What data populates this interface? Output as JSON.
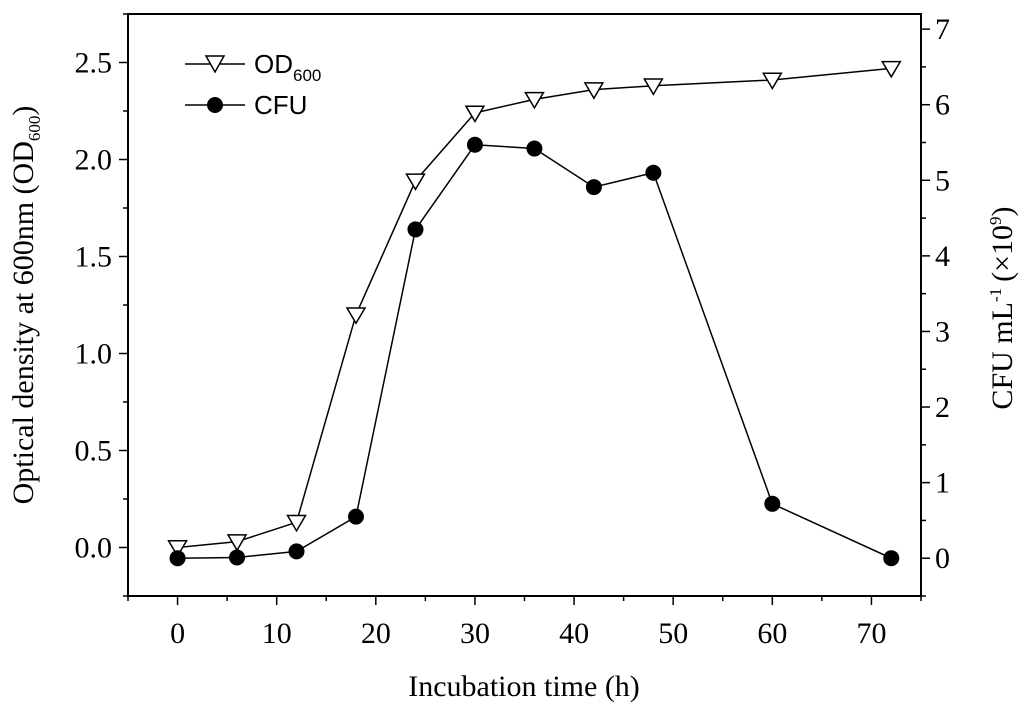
{
  "chart_data": {
    "type": "line",
    "xlabel": "Incubation time (h)",
    "ylabel_left": {
      "main": "Optical density at 600nm (OD",
      "sub": "600",
      "close": ")"
    },
    "ylabel_right": {
      "main": "CFU mL",
      "sup": "-1",
      "mid": "(×10",
      "sup2": "9",
      "close": ")"
    },
    "xlim": [
      -5,
      75
    ],
    "ylim_left": [
      -0.25,
      2.75
    ],
    "ylim_right": [
      -0.5,
      7.2
    ],
    "xticks": [
      0,
      10,
      20,
      30,
      40,
      50,
      60,
      70
    ],
    "yticks_left": [
      "0.0",
      "0.5",
      "1.0",
      "1.5",
      "2.0",
      "2.5"
    ],
    "yticks_right": [
      0,
      1,
      2,
      3,
      4,
      5,
      6,
      7
    ],
    "legend_position": "top-left",
    "series": [
      {
        "name": "OD",
        "name_sub": "600",
        "axis": "left",
        "marker": "open-down-triangle",
        "x": [
          0,
          6,
          12,
          18,
          24,
          30,
          36,
          42,
          48,
          60,
          72
        ],
        "y": [
          0.0,
          0.03,
          0.13,
          1.2,
          1.89,
          2.24,
          2.31,
          2.36,
          2.38,
          2.41,
          2.47
        ]
      },
      {
        "name": "CFU",
        "axis": "right",
        "marker": "filled-circle",
        "x": [
          0,
          6,
          12,
          18,
          24,
          30,
          36,
          42,
          48,
          60,
          72
        ],
        "y": [
          0.0,
          0.01,
          0.09,
          0.55,
          4.35,
          5.47,
          5.42,
          4.91,
          5.1,
          0.72,
          0.0
        ]
      }
    ]
  }
}
